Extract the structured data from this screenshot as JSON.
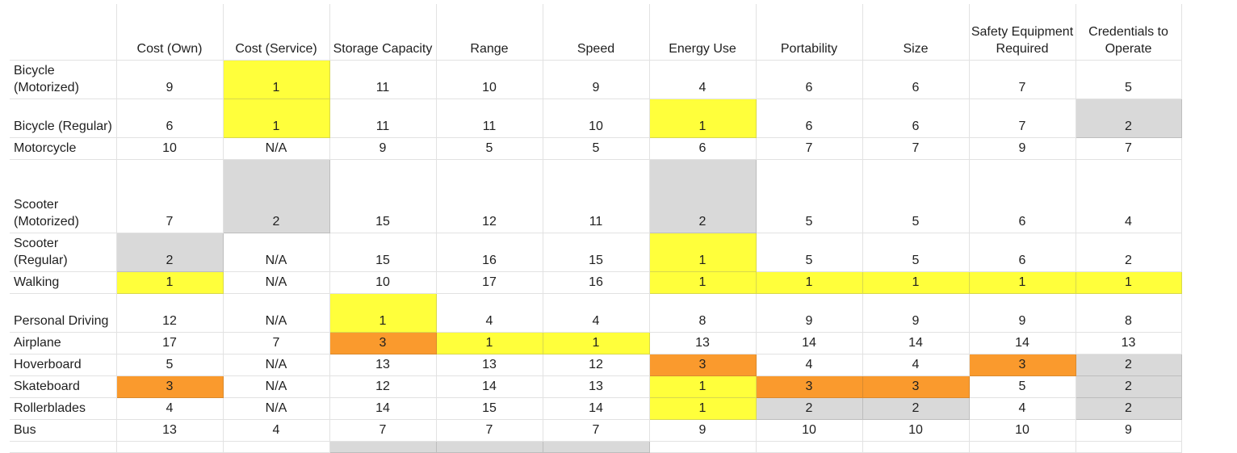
{
  "columns": [
    "Cost (Own)",
    "Cost (Service)",
    "Storage Capacity",
    "Range",
    "Speed",
    "Energy Use",
    "Portability",
    "Size",
    "Safety Equipment Required",
    "Credentials to Operate"
  ],
  "highlight_colors": {
    "yellow": "#ffff3b",
    "orange": "#fa9a2d",
    "gray": "#d9d9d9"
  },
  "rows": [
    {
      "label": "Bicycle (Motorized)",
      "values": [
        "9",
        "1",
        "11",
        "10",
        "9",
        "4",
        "6",
        "6",
        "7",
        "5"
      ],
      "highlights": [
        "",
        "yellow",
        "",
        "",
        "",
        "",
        "",
        "",
        "",
        ""
      ]
    },
    {
      "label": "Bicycle (Regular)",
      "values": [
        "6",
        "1",
        "11",
        "11",
        "10",
        "1",
        "6",
        "6",
        "7",
        "2"
      ],
      "highlights": [
        "",
        "yellow",
        "",
        "",
        "",
        "yellow",
        "",
        "",
        "",
        "gray"
      ]
    },
    {
      "label": "Motorcycle",
      "values": [
        "10",
        "N/A",
        "9",
        "5",
        "5",
        "6",
        "7",
        "7",
        "9",
        "7"
      ],
      "highlights": [
        "",
        "",
        "",
        "",
        "",
        "",
        "",
        "",
        "",
        ""
      ]
    },
    {
      "label": "Scooter (Motorized)",
      "values": [
        "7",
        "2",
        "15",
        "12",
        "11",
        "2",
        "5",
        "5",
        "6",
        "4"
      ],
      "highlights": [
        "",
        "gray",
        "",
        "",
        "",
        "gray",
        "",
        "",
        "",
        ""
      ]
    },
    {
      "label": "Scooter (Regular)",
      "values": [
        "2",
        "N/A",
        "15",
        "16",
        "15",
        "1",
        "5",
        "5",
        "6",
        "2"
      ],
      "highlights": [
        "gray",
        "",
        "",
        "",
        "",
        "yellow",
        "",
        "",
        "",
        ""
      ]
    },
    {
      "label": "Walking",
      "values": [
        "1",
        "N/A",
        "10",
        "17",
        "16",
        "1",
        "1",
        "1",
        "1",
        "1"
      ],
      "highlights": [
        "yellow",
        "",
        "",
        "",
        "",
        "yellow",
        "yellow",
        "yellow",
        "yellow",
        "yellow"
      ]
    },
    {
      "label": "Personal Driving",
      "values": [
        "12",
        "N/A",
        "1",
        "4",
        "4",
        "8",
        "9",
        "9",
        "9",
        "8"
      ],
      "highlights": [
        "",
        "",
        "yellow",
        "",
        "",
        "",
        "",
        "",
        "",
        ""
      ]
    },
    {
      "label": "Airplane",
      "values": [
        "17",
        "7",
        "3",
        "1",
        "1",
        "13",
        "14",
        "14",
        "14",
        "13"
      ],
      "highlights": [
        "",
        "",
        "orange",
        "yellow",
        "yellow",
        "",
        "",
        "",
        "",
        ""
      ]
    },
    {
      "label": "Hoverboard",
      "values": [
        "5",
        "N/A",
        "13",
        "13",
        "12",
        "3",
        "4",
        "4",
        "3",
        "2"
      ],
      "highlights": [
        "",
        "",
        "",
        "",
        "",
        "orange",
        "",
        "",
        "orange",
        "gray"
      ]
    },
    {
      "label": "Skateboard",
      "values": [
        "3",
        "N/A",
        "12",
        "14",
        "13",
        "1",
        "3",
        "3",
        "5",
        "2"
      ],
      "highlights": [
        "orange",
        "",
        "",
        "",
        "",
        "yellow",
        "orange",
        "orange",
        "",
        "gray"
      ]
    },
    {
      "label": "Rollerblades",
      "values": [
        "4",
        "N/A",
        "14",
        "15",
        "14",
        "1",
        "2",
        "2",
        "4",
        "2"
      ],
      "highlights": [
        "",
        "",
        "",
        "",
        "",
        "yellow",
        "gray",
        "gray",
        "",
        "gray"
      ]
    },
    {
      "label": "Bus",
      "values": [
        "13",
        "4",
        "7",
        "7",
        "7",
        "9",
        "10",
        "10",
        "10",
        "9"
      ],
      "highlights": [
        "",
        "",
        "",
        "",
        "",
        "",
        "",
        "",
        "",
        ""
      ]
    },
    {
      "label": "",
      "values": [
        "",
        "",
        "",
        "",
        "",
        "",
        "",
        "",
        "",
        ""
      ],
      "highlights": [
        "",
        "",
        "gray",
        "gray",
        "gray",
        "",
        "",
        "",
        "",
        ""
      ]
    }
  ]
}
